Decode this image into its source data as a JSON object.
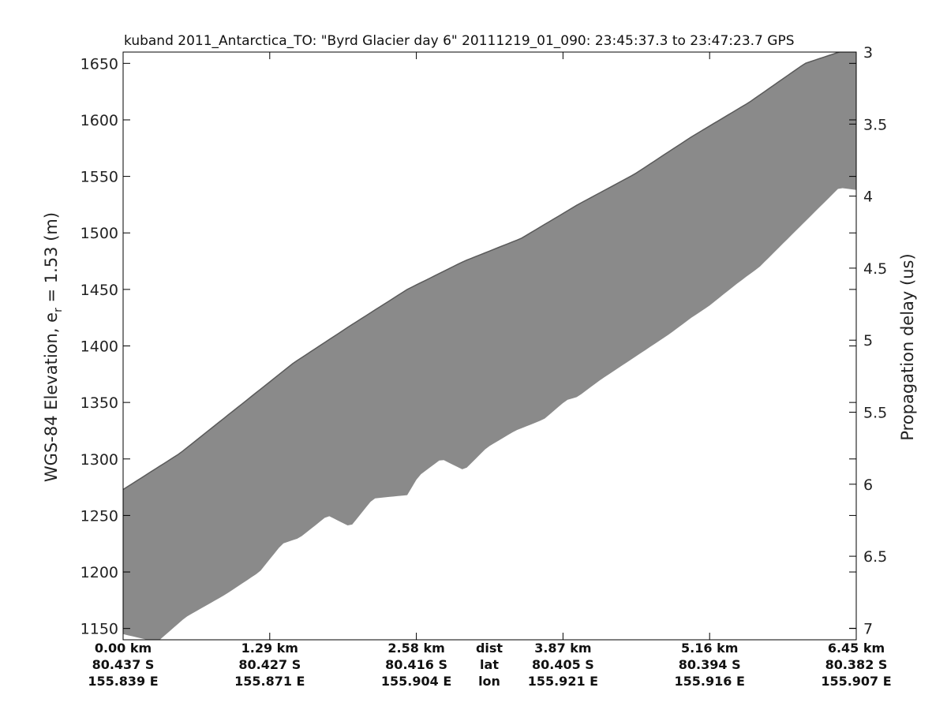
{
  "chart_data": {
    "type": "radar-echogram",
    "title": "kuband 2011_Antarctica_TO: \"Byrd Glacier day 6\"  20111219_01_090: 23:45:37.3 to 23:47:23.7 GPS",
    "ylabel_left_prefix": "WGS-84 Elevation, e",
    "ylabel_left_sub": "r",
    "ylabel_left_suffix": " = 1.53 (m)",
    "ylabel_right": "Propagation delay (us)",
    "ylim_left": [
      1140,
      1660
    ],
    "yticks_left": [
      1150,
      1200,
      1250,
      1300,
      1350,
      1400,
      1450,
      1500,
      1550,
      1600,
      1650
    ],
    "ylim_right": [
      3,
      7.08
    ],
    "yticks_right": [
      "3",
      "3.5",
      "4",
      "4.5",
      "5",
      "5.5",
      "6",
      "6.5",
      "7"
    ],
    "xlim_km": [
      0,
      6.45
    ],
    "xticks": [
      {
        "km": 0.0,
        "dist": "0.00 km",
        "lat": "80.437 S",
        "lon": "155.839 E"
      },
      {
        "km": 1.29,
        "dist": "1.29 km",
        "lat": "80.427 S",
        "lon": "155.871 E"
      },
      {
        "km": 2.58,
        "dist": "2.58 km",
        "lat": "80.416 S",
        "lon": "155.904 E"
      },
      {
        "km": 3.87,
        "dist": "3.87 km",
        "lat": "80.405 S",
        "lon": "155.921 E"
      },
      {
        "km": 5.16,
        "dist": "5.16 km",
        "lat": "80.394 S",
        "lon": "155.916 E"
      },
      {
        "km": 6.45,
        "dist": "6.45 km",
        "lat": "80.382 S",
        "lon": "155.907 E"
      }
    ],
    "row_labels": {
      "dist": "dist",
      "lat": "lat",
      "lon": "lon"
    },
    "surface_elevation": {
      "x_km": [
        0.0,
        0.5,
        1.0,
        1.5,
        2.0,
        2.5,
        3.0,
        3.5,
        4.0,
        4.5,
        5.0,
        5.5,
        6.0,
        6.45
      ],
      "elev_m": [
        1273,
        1305,
        1345,
        1385,
        1418,
        1450,
        1475,
        1495,
        1525,
        1552,
        1585,
        1615,
        1650,
        1665
      ]
    },
    "echo_bottom": {
      "x_km": [
        0.0,
        0.3,
        0.55,
        0.9,
        1.2,
        1.4,
        1.55,
        1.8,
        2.0,
        2.2,
        2.5,
        2.6,
        2.8,
        3.0,
        3.2,
        3.45,
        3.7,
        3.9,
        4.0,
        4.2,
        4.5,
        4.8,
        5.0,
        5.15,
        5.4,
        5.6,
        5.8,
        6.0,
        6.3,
        6.45
      ],
      "elev_m": [
        1145,
        1138,
        1160,
        1180,
        1200,
        1225,
        1230,
        1250,
        1240,
        1265,
        1268,
        1285,
        1300,
        1290,
        1310,
        1325,
        1335,
        1352,
        1355,
        1370,
        1390,
        1410,
        1425,
        1435,
        1455,
        1470,
        1490,
        1510,
        1540,
        1538
      ]
    }
  }
}
